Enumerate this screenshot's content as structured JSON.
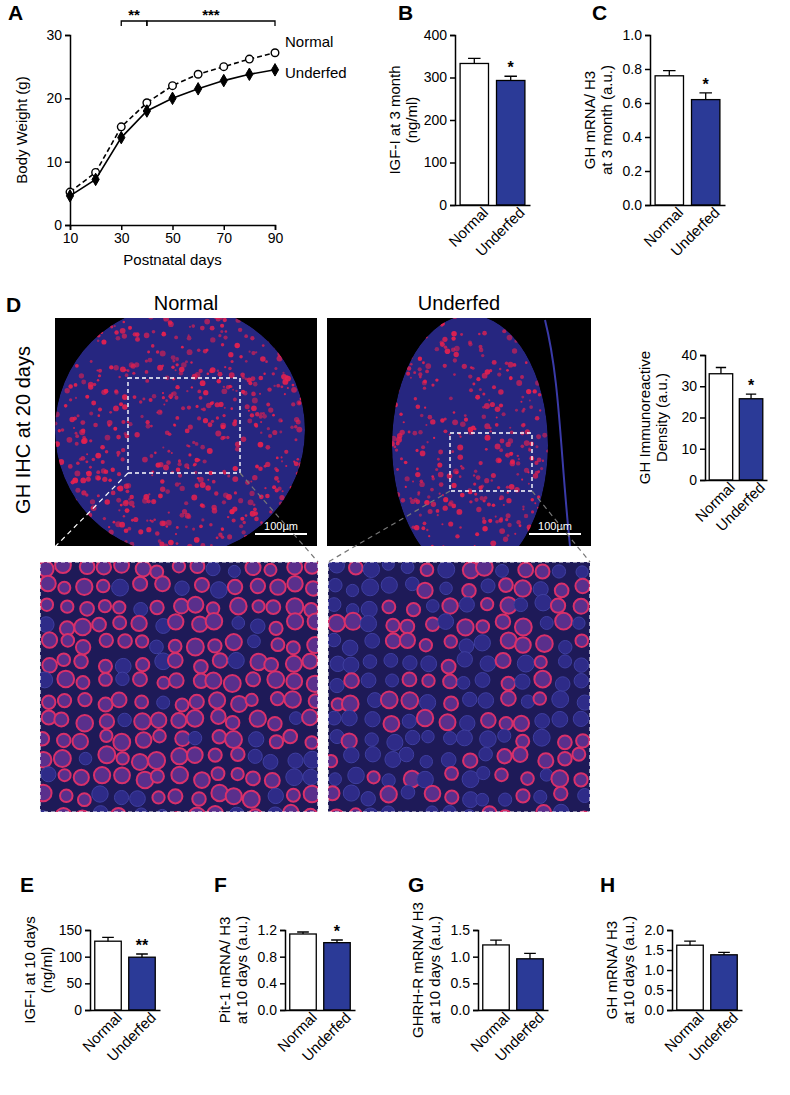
{
  "chart_data": [
    {
      "type": "line",
      "x_label": "Postnatal days",
      "y_label": "Body Weight (g)",
      "x": [
        10,
        20,
        30,
        40,
        50,
        60,
        70,
        80,
        90
      ],
      "xlim": [
        10,
        90
      ],
      "xticks": [
        10,
        30,
        50,
        70,
        90
      ],
      "ylim": [
        0,
        30
      ],
      "yticks": [
        0,
        10,
        20,
        30
      ],
      "series": [
        {
          "name": "Normal",
          "color": "#000000",
          "marker": "circle",
          "line_style": "dashed",
          "values": [
            5.2,
            8.3,
            15.5,
            19.3,
            22.0,
            23.8,
            25.0,
            26.2,
            27.2
          ]
        },
        {
          "name": "Underfed",
          "color": "#000000",
          "marker": "diamond",
          "line_style": "solid",
          "values": [
            4.6,
            7.2,
            13.8,
            18.0,
            20.0,
            21.5,
            22.8,
            23.8,
            24.5
          ]
        }
      ],
      "annotations": [
        {
          "text": "**",
          "x": [
            30,
            40
          ]
        },
        {
          "text": "***",
          "x": [
            40,
            90
          ]
        }
      ]
    },
    {
      "type": "bar",
      "y_label": [
        "IGF-I at 3 month",
        "(ng/ml)"
      ],
      "categories": [
        "Normal",
        "Underfed"
      ],
      "values": [
        333,
        293
      ],
      "errors": [
        12,
        10
      ],
      "colors": [
        "#ffffff",
        "#2b3a97"
      ],
      "ylim": [
        0,
        400
      ],
      "yticks": [
        0,
        100,
        200,
        300,
        400
      ],
      "annotations": [
        {
          "text": "*",
          "category": 1
        }
      ]
    },
    {
      "type": "bar",
      "y_label": [
        "GH mRNA/ H3",
        "at 3 month (a.u.)"
      ],
      "categories": [
        "Normal",
        "Underfed"
      ],
      "values": [
        0.76,
        0.62
      ],
      "errors": [
        0.03,
        0.04
      ],
      "colors": [
        "#ffffff",
        "#2b3a97"
      ],
      "ylim": [
        0,
        1.0
      ],
      "yticks": [
        {
          "value": 0,
          "label": "0.0"
        },
        0.2,
        0.4,
        0.6,
        0.8,
        {
          "value": 1.0,
          "label": "1.0"
        }
      ],
      "annotations": [
        {
          "text": "*",
          "category": 1
        }
      ]
    },
    {
      "type": "bar",
      "y_label": [
        "GH Immunoreactive",
        "Density (a.u.)"
      ],
      "categories": [
        "Normal",
        "Underfed"
      ],
      "values": [
        34,
        26
      ],
      "errors": [
        2,
        1.5
      ],
      "colors": [
        "#ffffff",
        "#2b3a97"
      ],
      "ylim": [
        0,
        40
      ],
      "yticks": [
        0,
        10,
        20,
        30,
        40
      ],
      "annotations": [
        {
          "text": "*",
          "category": 1
        }
      ]
    },
    {
      "type": "bar",
      "y_label": [
        "IGF-I at 10 days",
        "(ng/ml)"
      ],
      "categories": [
        "Normal",
        "Underfed"
      ],
      "values": [
        129,
        99
      ],
      "errors": [
        7,
        6
      ],
      "colors": [
        "#ffffff",
        "#2b3a97"
      ],
      "ylim": [
        0,
        150
      ],
      "yticks": [
        0,
        50,
        100,
        150
      ],
      "annotations": [
        {
          "text": "**",
          "category": 1
        }
      ]
    },
    {
      "type": "bar",
      "y_label": [
        "Pit-1 mRNA/ H3",
        "at 10 days (a.u.)"
      ],
      "categories": [
        "Normal",
        "Underfed"
      ],
      "values": [
        1.14,
        1.01
      ],
      "errors": [
        0.03,
        0.04
      ],
      "colors": [
        "#ffffff",
        "#2b3a97"
      ],
      "ylim": [
        0,
        1.2
      ],
      "yticks": [
        {
          "value": 0,
          "label": "0.0"
        },
        0.4,
        0.8,
        1.2
      ],
      "annotations": [
        {
          "text": "*",
          "category": 1
        }
      ]
    },
    {
      "type": "bar",
      "y_label": [
        "GHRH-R mRNA/ H3",
        "at 10 days (a.u.)"
      ],
      "categories": [
        "Normal",
        "Underfed"
      ],
      "values": [
        1.22,
        0.96
      ],
      "errors": [
        0.09,
        0.1
      ],
      "colors": [
        "#ffffff",
        "#2b3a97"
      ],
      "ylim": [
        0,
        1.5
      ],
      "yticks": [
        {
          "value": 0,
          "label": "0.0"
        },
        0.5,
        {
          "value": 1.0,
          "label": "1.0"
        },
        1.5
      ]
    },
    {
      "type": "bar",
      "y_label": [
        "GH mRNA/ H3",
        "at 10 days (a.u.)"
      ],
      "categories": [
        "Normal",
        "Underfed"
      ],
      "values": [
        1.62,
        1.38
      ],
      "errors": [
        0.1,
        0.06
      ],
      "colors": [
        "#ffffff",
        "#2b3a97"
      ],
      "ylim": [
        0,
        2.0
      ],
      "yticks": [
        {
          "value": 0,
          "label": "0.0"
        },
        0.5,
        {
          "value": 1.0,
          "label": "1.0"
        },
        1.5,
        {
          "value": 2.0,
          "label": "2.0"
        }
      ]
    }
  ],
  "panel_labels": [
    "A",
    "B",
    "C",
    "D",
    "E",
    "F",
    "G",
    "H"
  ],
  "micrographs": {
    "row_label": "GH IHC at 20 days",
    "panels": [
      {
        "title": "Normal",
        "scale_bar": "100µm"
      },
      {
        "title": "Underfed",
        "scale_bar": "100µm"
      }
    ]
  }
}
